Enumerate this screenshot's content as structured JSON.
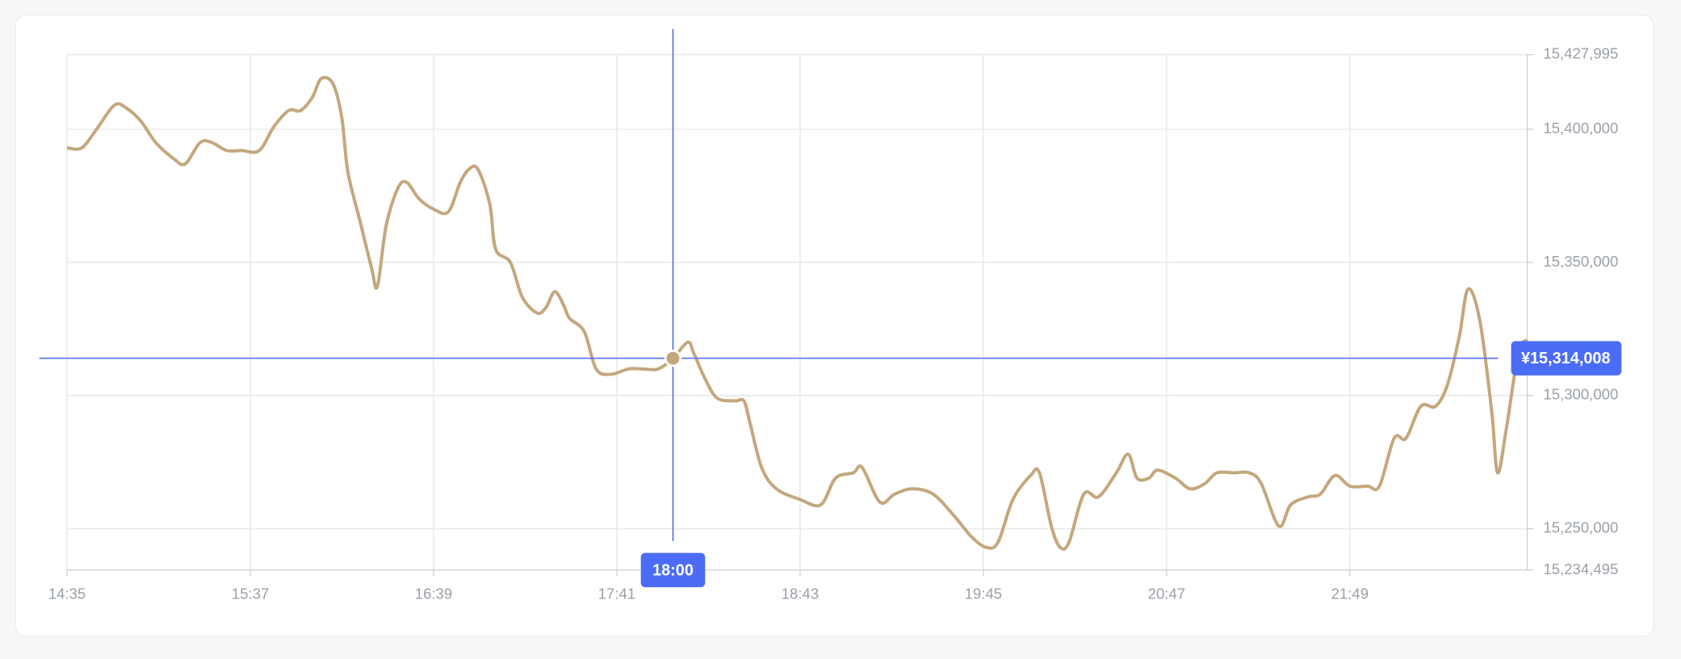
{
  "chart_data": {
    "type": "line",
    "color": "#c4a77d",
    "grid": true,
    "x": [
      "14:35",
      "14:40",
      "14:45",
      "14:51",
      "14:55",
      "15:00",
      "15:05",
      "15:11",
      "15:15",
      "15:20",
      "15:24",
      "15:29",
      "15:34",
      "15:40",
      "15:45",
      "15:50",
      "15:54",
      "15:58",
      "16:01",
      "16:05",
      "16:08",
      "16:10",
      "16:14",
      "16:18",
      "16:20",
      "16:23",
      "16:27",
      "16:30",
      "16:34",
      "16:39",
      "16:44",
      "16:48",
      "16:51",
      "16:54",
      "16:58",
      "17:00",
      "17:05",
      "17:09",
      "17:14",
      "17:17",
      "17:20",
      "17:23",
      "17:25",
      "17:30",
      "17:34",
      "17:39",
      "17:45",
      "17:50",
      "17:55",
      "18:00",
      "18:05",
      "18:07",
      "18:11",
      "18:15",
      "18:21",
      "18:24",
      "18:26",
      "18:30",
      "18:35",
      "18:43",
      "18:50",
      "18:55",
      "19:01",
      "19:04",
      "19:10",
      "19:15",
      "19:21",
      "19:28",
      "19:35",
      "19:41",
      "19:46",
      "19:50",
      "19:55",
      "20:01",
      "20:04",
      "20:08",
      "20:11",
      "20:14",
      "20:19",
      "20:24",
      "20:30",
      "20:34",
      "20:37",
      "20:41",
      "20:44",
      "20:50",
      "20:55",
      "21:00",
      "21:04",
      "21:10",
      "21:15",
      "21:19",
      "21:25",
      "21:29",
      "21:35",
      "21:39",
      "21:44",
      "21:49",
      "21:55",
      "21:59",
      "22:04",
      "22:08",
      "22:13",
      "22:18",
      "22:22",
      "22:26",
      "22:29",
      "22:33",
      "22:37",
      "22:39",
      "22:42",
      "22:46",
      "22:49"
    ],
    "values": [
      15393000,
      15393000,
      15400000,
      15409000,
      15408000,
      15403000,
      15395000,
      15389000,
      15387000,
      15395000,
      15395000,
      15392000,
      15392000,
      15392000,
      15401000,
      15407000,
      15407000,
      15412000,
      15419000,
      15417000,
      15404000,
      15384000,
      15366000,
      15348000,
      15341000,
      15364000,
      15378000,
      15380000,
      15374000,
      15370000,
      15369000,
      15380000,
      15385000,
      15385000,
      15372000,
      15355000,
      15350000,
      15337000,
      15331000,
      15333000,
      15339000,
      15334000,
      15329000,
      15324000,
      15310000,
      15308000,
      15310000,
      15310000,
      15310000,
      15314000,
      15320000,
      15316000,
      15306000,
      15299000,
      15298000,
      15298000,
      15290000,
      15273000,
      15265000,
      15261000,
      15259000,
      15269000,
      15271000,
      15273000,
      15260000,
      15263000,
      15265000,
      15263000,
      15255000,
      15247000,
      15243000,
      15245000,
      15261000,
      15270000,
      15271000,
      15251000,
      15243000,
      15245000,
      15263000,
      15262000,
      15271000,
      15278000,
      15269000,
      15269000,
      15272000,
      15269000,
      15265000,
      15267000,
      15271000,
      15271000,
      15271000,
      15267000,
      15251000,
      15259000,
      15262000,
      15263000,
      15270000,
      15266000,
      15266000,
      15266000,
      15284000,
      15284000,
      15296000,
      15296000,
      15304000,
      15322000,
      15340000,
      15328000,
      15294000,
      15271000,
      15288000,
      15316000,
      15321000
    ],
    "xlim": [
      "14:35",
      "22:49"
    ],
    "xticks": [
      "14:35",
      "15:37",
      "16:39",
      "17:41",
      "18:43",
      "19:45",
      "20:47",
      "21:49"
    ],
    "ylim": [
      15234495,
      15427995
    ],
    "yticks": [
      {
        "value": 15234495,
        "label": "15,234,495"
      },
      {
        "value": 15250000,
        "label": "15,250,000"
      },
      {
        "value": 15300000,
        "label": "15,300,000"
      },
      {
        "value": 15350000,
        "label": "15,350,000"
      },
      {
        "value": 15400000,
        "label": "15,400,000"
      },
      {
        "value": 15427995,
        "label": "15,427,995"
      }
    ],
    "crosshair": {
      "x": "18:00",
      "y": 15314008,
      "y_label": "¥15,314,008",
      "color": "#4a6cf7"
    }
  }
}
